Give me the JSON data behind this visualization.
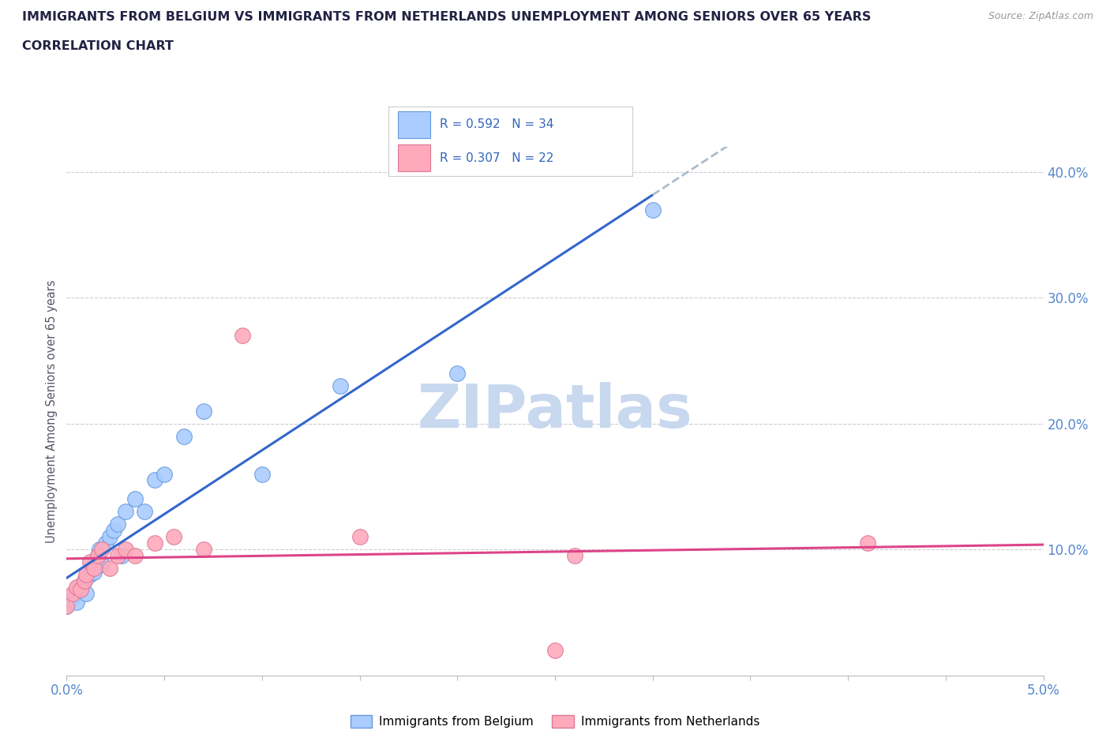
{
  "title_line1": "IMMIGRANTS FROM BELGIUM VS IMMIGRANTS FROM NETHERLANDS UNEMPLOYMENT AMONG SENIORS OVER 65 YEARS",
  "title_line2": "CORRELATION CHART",
  "source": "Source: ZipAtlas.com",
  "ylabel_label": "Unemployment Among Seniors over 65 years",
  "legend_label1": "Immigrants from Belgium",
  "legend_label2": "Immigrants from Netherlands",
  "R1": 0.592,
  "N1": 34,
  "R2": 0.307,
  "N2": 22,
  "color1": "#aaccff",
  "color1_edge": "#6699dd",
  "color2": "#ffaabb",
  "color2_edge": "#dd7799",
  "trendline1_color": "#3366cc",
  "trendline2_color": "#dd4488",
  "trendline_dashed_color": "#aabbcc",
  "xlim": [
    0.0,
    0.05
  ],
  "ylim": [
    0.0,
    0.42
  ],
  "background_color": "#ffffff",
  "grid_color": "#cccccc",
  "title_color": "#222244",
  "axis_label_color": "#555566",
  "belgium_x": [
    0.0,
    0.0002,
    0.0003,
    0.0004,
    0.0005,
    0.0006,
    0.0007,
    0.0008,
    0.0009,
    0.001,
    0.001,
    0.0012,
    0.0013,
    0.0014,
    0.0015,
    0.0016,
    0.0017,
    0.0018,
    0.002,
    0.0022,
    0.0024,
    0.0026,
    0.0028,
    0.003,
    0.0035,
    0.004,
    0.0045,
    0.005,
    0.006,
    0.007,
    0.01,
    0.014,
    0.02,
    0.03
  ],
  "belgium_y": [
    0.055,
    0.06,
    0.062,
    0.065,
    0.058,
    0.07,
    0.068,
    0.072,
    0.075,
    0.078,
    0.065,
    0.08,
    0.085,
    0.082,
    0.09,
    0.095,
    0.1,
    0.088,
    0.105,
    0.11,
    0.115,
    0.12,
    0.095,
    0.13,
    0.14,
    0.13,
    0.155,
    0.16,
    0.19,
    0.21,
    0.16,
    0.23,
    0.24,
    0.37
  ],
  "netherlands_x": [
    0.0,
    0.0003,
    0.0005,
    0.0007,
    0.0009,
    0.001,
    0.0012,
    0.0014,
    0.0016,
    0.0018,
    0.0022,
    0.0026,
    0.003,
    0.0035,
    0.0045,
    0.0055,
    0.007,
    0.009,
    0.015,
    0.025,
    0.026,
    0.041
  ],
  "netherlands_y": [
    0.055,
    0.065,
    0.07,
    0.068,
    0.075,
    0.08,
    0.09,
    0.085,
    0.095,
    0.1,
    0.085,
    0.095,
    0.1,
    0.095,
    0.105,
    0.11,
    0.1,
    0.27,
    0.11,
    0.02,
    0.095,
    0.105
  ],
  "watermark_text": "ZIPatlas",
  "watermark_color": "#c8d8ee",
  "watermark_fontsize": 55
}
